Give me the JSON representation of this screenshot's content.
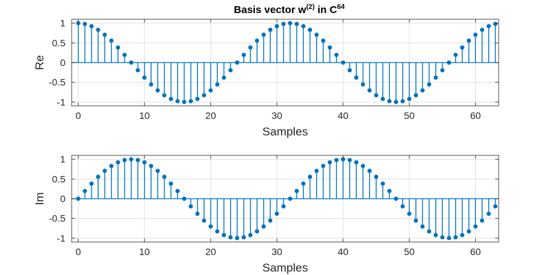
{
  "title": {
    "prefix": "Basis vector w",
    "sup1": "(2)",
    "middle": " in C",
    "sup2": "64"
  },
  "colors": {
    "stem": "#0072BD",
    "grid": "#dfdfdf",
    "axis": "#262626",
    "baseline": "#0072BD"
  },
  "chart_data": [
    {
      "type": "stem",
      "name": "real-part",
      "xlabel": "Samples",
      "ylabel": "Re",
      "xlim": [
        -1,
        63.5
      ],
      "ylim": [
        -1.1,
        1.1
      ],
      "xticks": [
        0,
        10,
        20,
        30,
        40,
        50,
        60
      ],
      "xtick_labels": [
        "0",
        "10",
        "20",
        "30",
        "40",
        "50",
        "60"
      ],
      "yticks": [
        1,
        0.5,
        0,
        -0.5,
        -1
      ],
      "ytick_labels": [
        "1",
        "0.5",
        "0",
        "-0.5",
        "-1"
      ],
      "grid": true,
      "x": [
        0,
        1,
        2,
        3,
        4,
        5,
        6,
        7,
        8,
        9,
        10,
        11,
        12,
        13,
        14,
        15,
        16,
        17,
        18,
        19,
        20,
        21,
        22,
        23,
        24,
        25,
        26,
        27,
        28,
        29,
        30,
        31,
        32,
        33,
        34,
        35,
        36,
        37,
        38,
        39,
        40,
        41,
        42,
        43,
        44,
        45,
        46,
        47,
        48,
        49,
        50,
        51,
        52,
        53,
        54,
        55,
        56,
        57,
        58,
        59,
        60,
        61,
        62,
        63
      ],
      "values": [
        1.0,
        0.981,
        0.924,
        0.831,
        0.707,
        0.556,
        0.383,
        0.195,
        0.0,
        -0.195,
        -0.383,
        -0.556,
        -0.707,
        -0.831,
        -0.924,
        -0.981,
        -1.0,
        -0.981,
        -0.924,
        -0.831,
        -0.707,
        -0.556,
        -0.383,
        -0.195,
        0.0,
        0.195,
        0.383,
        0.556,
        0.707,
        0.831,
        0.924,
        0.981,
        1.0,
        0.981,
        0.924,
        0.831,
        0.707,
        0.556,
        0.383,
        0.195,
        0.0,
        -0.195,
        -0.383,
        -0.556,
        -0.707,
        -0.831,
        -0.924,
        -0.981,
        -1.0,
        -0.981,
        -0.924,
        -0.831,
        -0.707,
        -0.556,
        -0.383,
        -0.195,
        0.0,
        0.195,
        0.383,
        0.556,
        0.707,
        0.831,
        0.924,
        0.981
      ]
    },
    {
      "type": "stem",
      "name": "imaginary-part",
      "xlabel": "Samples",
      "ylabel": "Im",
      "xlim": [
        -1,
        63.5
      ],
      "ylim": [
        -1.1,
        1.1
      ],
      "xticks": [
        0,
        10,
        20,
        30,
        40,
        50,
        60
      ],
      "xtick_labels": [
        "0",
        "10",
        "20",
        "30",
        "40",
        "50",
        "60"
      ],
      "yticks": [
        1,
        0.5,
        0,
        -0.5,
        -1
      ],
      "ytick_labels": [
        "1",
        "0.5",
        "0",
        "-0.5",
        "-1"
      ],
      "grid": true,
      "x": [
        0,
        1,
        2,
        3,
        4,
        5,
        6,
        7,
        8,
        9,
        10,
        11,
        12,
        13,
        14,
        15,
        16,
        17,
        18,
        19,
        20,
        21,
        22,
        23,
        24,
        25,
        26,
        27,
        28,
        29,
        30,
        31,
        32,
        33,
        34,
        35,
        36,
        37,
        38,
        39,
        40,
        41,
        42,
        43,
        44,
        45,
        46,
        47,
        48,
        49,
        50,
        51,
        52,
        53,
        54,
        55,
        56,
        57,
        58,
        59,
        60,
        61,
        62,
        63
      ],
      "values": [
        0.0,
        0.195,
        0.383,
        0.556,
        0.707,
        0.831,
        0.924,
        0.981,
        1.0,
        0.981,
        0.924,
        0.831,
        0.707,
        0.556,
        0.383,
        0.195,
        0.0,
        -0.195,
        -0.383,
        -0.556,
        -0.707,
        -0.831,
        -0.924,
        -0.981,
        -1.0,
        -0.981,
        -0.924,
        -0.831,
        -0.707,
        -0.556,
        -0.383,
        -0.195,
        0.0,
        0.195,
        0.383,
        0.556,
        0.707,
        0.831,
        0.924,
        0.981,
        1.0,
        0.981,
        0.924,
        0.831,
        0.707,
        0.556,
        0.383,
        0.195,
        0.0,
        -0.195,
        -0.383,
        -0.556,
        -0.707,
        -0.831,
        -0.924,
        -0.981,
        -1.0,
        -0.981,
        -0.924,
        -0.831,
        -0.707,
        -0.556,
        -0.383,
        -0.195
      ]
    }
  ]
}
